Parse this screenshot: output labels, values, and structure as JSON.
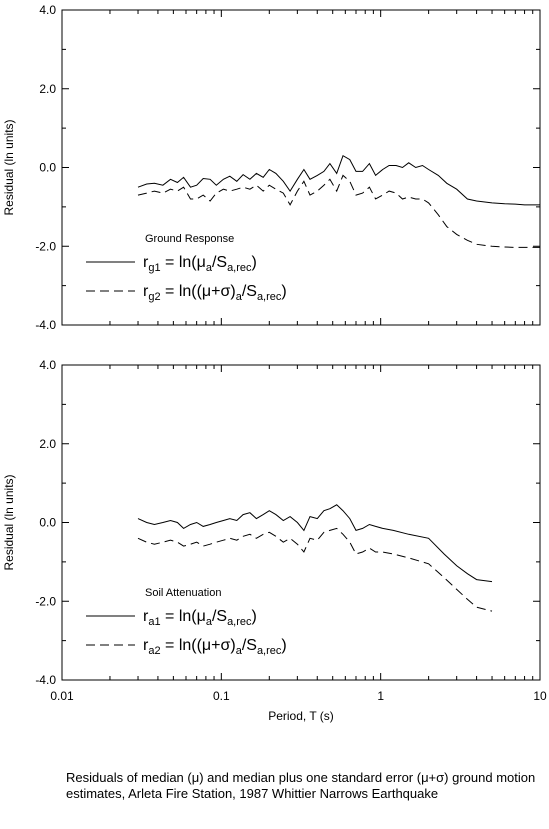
{
  "caption": "Residuals of median (μ) and median plus one standard error (μ+σ) ground motion estimates, Arleta Fire Station, 1987 Whittier Narrows Earthquake",
  "chart_data": [
    {
      "type": "line",
      "ylabel": "Residual (ln units)",
      "xlabel": "",
      "xscale": "log",
      "xlim": [
        0.01,
        10
      ],
      "ylim": [
        -4.0,
        4.0
      ],
      "yticks": [
        "4.0",
        "2.0",
        "0.0",
        "-2.0",
        "-4.0"
      ],
      "legend": {
        "title": "Ground Response",
        "placement": "lower-left",
        "entries": [
          {
            "style": "solid",
            "base": "r",
            "sub": "g1",
            "expr": [
              "= ln(μ",
              "a",
              "/S",
              "a,rec",
              ")"
            ]
          },
          {
            "style": "dashed",
            "base": "r",
            "sub": "g2",
            "expr": [
              "= ln((μ+σ)",
              "a",
              "/S",
              "a,rec",
              ")"
            ]
          }
        ]
      },
      "series": [
        {
          "style": "solid",
          "x": [
            0.03,
            0.034,
            0.038,
            0.043,
            0.048,
            0.053,
            0.058,
            0.064,
            0.07,
            0.077,
            0.085,
            0.093,
            0.103,
            0.113,
            0.125,
            0.137,
            0.151,
            0.166,
            0.183,
            0.2,
            0.22,
            0.245,
            0.27,
            0.3,
            0.33,
            0.36,
            0.4,
            0.44,
            0.48,
            0.53,
            0.58,
            0.64,
            0.7,
            0.77,
            0.85,
            0.93,
            1.03,
            1.13,
            1.25,
            1.37,
            1.5,
            1.66,
            1.83,
            2.0,
            2.3,
            2.6,
            3.0,
            3.5,
            4.0,
            5.0,
            6.0,
            7.0,
            8.0,
            9.0,
            10.0
          ],
          "y": [
            -0.5,
            -0.42,
            -0.4,
            -0.45,
            -0.3,
            -0.38,
            -0.25,
            -0.5,
            -0.45,
            -0.28,
            -0.3,
            -0.45,
            -0.3,
            -0.22,
            -0.35,
            -0.18,
            -0.3,
            -0.15,
            -0.25,
            -0.05,
            -0.15,
            -0.35,
            -0.6,
            -0.3,
            -0.05,
            -0.3,
            -0.2,
            -0.1,
            0.1,
            -0.15,
            0.3,
            0.2,
            -0.1,
            -0.1,
            0.1,
            -0.2,
            -0.05,
            0.05,
            0.05,
            0.0,
            0.12,
            0.0,
            0.05,
            -0.05,
            -0.2,
            -0.4,
            -0.55,
            -0.8,
            -0.85,
            -0.9,
            -0.92,
            -0.93,
            -0.95,
            -0.95,
            -0.95
          ]
        },
        {
          "style": "dashed",
          "x": [
            0.03,
            0.034,
            0.038,
            0.043,
            0.048,
            0.053,
            0.058,
            0.064,
            0.07,
            0.077,
            0.085,
            0.093,
            0.103,
            0.113,
            0.125,
            0.137,
            0.151,
            0.166,
            0.183,
            0.2,
            0.22,
            0.245,
            0.27,
            0.3,
            0.33,
            0.36,
            0.4,
            0.44,
            0.48,
            0.53,
            0.58,
            0.64,
            0.7,
            0.77,
            0.85,
            0.93,
            1.03,
            1.13,
            1.25,
            1.37,
            1.5,
            1.66,
            1.83,
            2.0,
            2.3,
            2.6,
            3.0,
            3.5,
            4.0,
            5.0,
            6.0,
            7.0,
            8.0,
            9.0,
            10.0
          ],
          "y": [
            -0.7,
            -0.65,
            -0.6,
            -0.65,
            -0.55,
            -0.6,
            -0.5,
            -0.8,
            -0.8,
            -0.7,
            -0.85,
            -0.65,
            -0.55,
            -0.6,
            -0.55,
            -0.5,
            -0.55,
            -0.45,
            -0.6,
            -0.45,
            -0.55,
            -0.65,
            -0.95,
            -0.6,
            -0.35,
            -0.7,
            -0.6,
            -0.45,
            -0.3,
            -0.6,
            -0.2,
            -0.35,
            -0.7,
            -0.65,
            -0.5,
            -0.8,
            -0.7,
            -0.6,
            -0.65,
            -0.8,
            -0.75,
            -0.8,
            -0.8,
            -0.9,
            -1.2,
            -1.5,
            -1.7,
            -1.85,
            -1.95,
            -2.0,
            -2.02,
            -2.03,
            -2.03,
            -2.03,
            -2.03
          ]
        }
      ]
    },
    {
      "type": "line",
      "ylabel": "Residual (ln units)",
      "xlabel": "Period, T (s)",
      "xscale": "log",
      "xlim": [
        0.01,
        10
      ],
      "ylim": [
        -4.0,
        4.0
      ],
      "yticks": [
        "4.0",
        "2.0",
        "0.0",
        "-2.0",
        "-4.0"
      ],
      "xticks": [
        {
          "value": 0.01,
          "label": "0.01"
        },
        {
          "value": 0.1,
          "label": "0.1"
        },
        {
          "value": 1,
          "label": "1"
        },
        {
          "value": 10,
          "label": "10"
        }
      ],
      "legend": {
        "title": "Soil Attenuation",
        "placement": "lower-left",
        "entries": [
          {
            "style": "solid",
            "base": "r",
            "sub": "a1",
            "expr": [
              "= ln(μ",
              "a",
              "/S",
              "a,rec",
              ")"
            ]
          },
          {
            "style": "dashed",
            "base": "r",
            "sub": "a2",
            "expr": [
              "= ln((μ+σ)",
              "a",
              "/S",
              "a,rec",
              ")"
            ]
          }
        ]
      },
      "series": [
        {
          "style": "solid",
          "x": [
            0.03,
            0.034,
            0.038,
            0.043,
            0.048,
            0.053,
            0.058,
            0.064,
            0.07,
            0.077,
            0.085,
            0.093,
            0.103,
            0.113,
            0.125,
            0.137,
            0.151,
            0.166,
            0.183,
            0.2,
            0.22,
            0.245,
            0.27,
            0.3,
            0.33,
            0.36,
            0.4,
            0.44,
            0.48,
            0.53,
            0.58,
            0.64,
            0.7,
            0.77,
            0.85,
            0.93,
            1.03,
            1.2,
            1.5,
            2.0,
            2.5,
            3.0,
            3.5,
            4.0,
            5.0
          ],
          "y": [
            0.1,
            0.0,
            -0.05,
            0.0,
            0.05,
            0.0,
            -0.15,
            -0.05,
            0.0,
            -0.1,
            -0.05,
            0.0,
            0.05,
            0.1,
            0.05,
            0.2,
            0.25,
            0.1,
            0.2,
            0.3,
            0.2,
            0.05,
            0.15,
            0.0,
            -0.2,
            0.15,
            0.1,
            0.3,
            0.35,
            0.45,
            0.3,
            0.1,
            -0.2,
            -0.15,
            -0.05,
            -0.1,
            -0.15,
            -0.2,
            -0.3,
            -0.4,
            -0.8,
            -1.1,
            -1.3,
            -1.45,
            -1.5
          ]
        },
        {
          "style": "dashed",
          "x": [
            0.03,
            0.034,
            0.038,
            0.043,
            0.048,
            0.053,
            0.058,
            0.064,
            0.07,
            0.077,
            0.085,
            0.093,
            0.103,
            0.113,
            0.125,
            0.137,
            0.151,
            0.166,
            0.183,
            0.2,
            0.22,
            0.245,
            0.27,
            0.3,
            0.33,
            0.36,
            0.4,
            0.44,
            0.48,
            0.53,
            0.58,
            0.64,
            0.7,
            0.77,
            0.85,
            0.93,
            1.03,
            1.2,
            1.5,
            2.0,
            2.5,
            3.0,
            3.5,
            4.0,
            5.0
          ],
          "y": [
            -0.4,
            -0.5,
            -0.55,
            -0.5,
            -0.45,
            -0.5,
            -0.6,
            -0.55,
            -0.5,
            -0.6,
            -0.55,
            -0.5,
            -0.45,
            -0.4,
            -0.45,
            -0.35,
            -0.3,
            -0.4,
            -0.3,
            -0.25,
            -0.35,
            -0.5,
            -0.4,
            -0.55,
            -0.75,
            -0.4,
            -0.45,
            -0.25,
            -0.2,
            -0.15,
            -0.3,
            -0.5,
            -0.8,
            -0.75,
            -0.65,
            -0.75,
            -0.75,
            -0.8,
            -0.9,
            -1.05,
            -1.4,
            -1.7,
            -1.95,
            -2.15,
            -2.25
          ]
        }
      ]
    }
  ]
}
